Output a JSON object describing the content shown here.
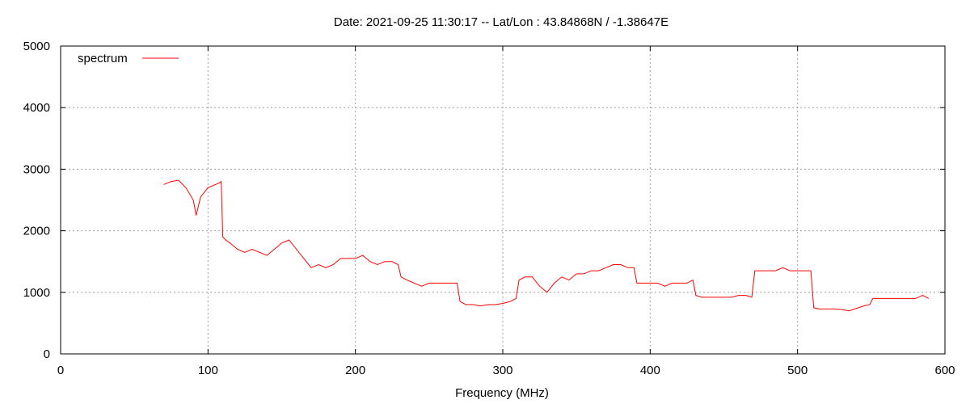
{
  "chart_data": {
    "type": "line",
    "title": "Date: 2021-09-25 11:30:17  --  Lat/Lon : 43.84868N / -1.38647E",
    "xlabel": "Frequency (MHz)",
    "ylabel": "",
    "xlim": [
      0,
      600
    ],
    "ylim": [
      0,
      5000
    ],
    "x_ticks": [
      0,
      100,
      200,
      300,
      400,
      500,
      600
    ],
    "y_ticks": [
      0,
      1000,
      2000,
      3000,
      4000,
      5000
    ],
    "grid": true,
    "legend_position": "top-left",
    "series": [
      {
        "name": "spectrum",
        "color": "#ff0000",
        "x": [
          70,
          75,
          80,
          85,
          90,
          92,
          95,
          100,
          105,
          108,
          109,
          110,
          112,
          115,
          120,
          125,
          130,
          135,
          140,
          145,
          150,
          155,
          160,
          165,
          170,
          175,
          180,
          185,
          190,
          195,
          200,
          205,
          210,
          215,
          220,
          225,
          229,
          231,
          235,
          240,
          245,
          250,
          255,
          260,
          265,
          269,
          271,
          275,
          280,
          285,
          290,
          295,
          300,
          305,
          309,
          311,
          315,
          320,
          325,
          330,
          335,
          340,
          345,
          350,
          355,
          360,
          365,
          370,
          375,
          380,
          385,
          389,
          391,
          395,
          400,
          405,
          410,
          415,
          420,
          425,
          429,
          431,
          435,
          440,
          445,
          450,
          455,
          460,
          465,
          469,
          471,
          475,
          480,
          485,
          490,
          495,
          500,
          505,
          509,
          511,
          515,
          520,
          525,
          530,
          535,
          540,
          545,
          549,
          551,
          555,
          560,
          565,
          570,
          575,
          580,
          585,
          589
        ],
        "y": [
          2750,
          2800,
          2820,
          2700,
          2500,
          2250,
          2550,
          2700,
          2750,
          2780,
          2800,
          1900,
          1850,
          1800,
          1700,
          1650,
          1700,
          1650,
          1600,
          1700,
          1800,
          1850,
          1700,
          1550,
          1400,
          1450,
          1400,
          1450,
          1550,
          1550,
          1550,
          1600,
          1500,
          1450,
          1500,
          1500,
          1450,
          1250,
          1200,
          1150,
          1100,
          1150,
          1150,
          1150,
          1150,
          1150,
          850,
          800,
          800,
          780,
          800,
          800,
          820,
          850,
          900,
          1200,
          1250,
          1250,
          1100,
          1000,
          1150,
          1250,
          1200,
          1300,
          1300,
          1350,
          1350,
          1400,
          1450,
          1450,
          1400,
          1400,
          1150,
          1150,
          1150,
          1150,
          1100,
          1150,
          1150,
          1150,
          1200,
          950,
          920,
          920,
          920,
          920,
          920,
          950,
          950,
          920,
          1350,
          1350,
          1350,
          1350,
          1400,
          1350,
          1350,
          1350,
          1350,
          750,
          730,
          730,
          730,
          720,
          700,
          740,
          780,
          800,
          900,
          900,
          900,
          900,
          900,
          900,
          900,
          950,
          900
        ]
      }
    ]
  }
}
